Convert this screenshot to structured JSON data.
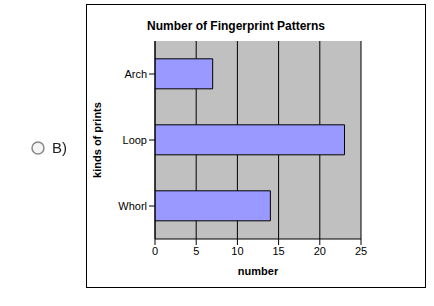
{
  "chart_data": {
    "type": "bar",
    "title": "Number of Fingerprint Patterns",
    "x_label": "number",
    "y_label": "kinds of prints",
    "categories": [
      "Arch",
      "Loop",
      "Whorl"
    ],
    "values": [
      7,
      23,
      14
    ],
    "color": "#9999ff",
    "orientation": "horizontal",
    "xlim": [
      0,
      25
    ],
    "xticks": [
      0,
      5,
      10,
      15,
      20,
      25
    ],
    "grid": true
  },
  "option": {
    "label": "B)"
  }
}
